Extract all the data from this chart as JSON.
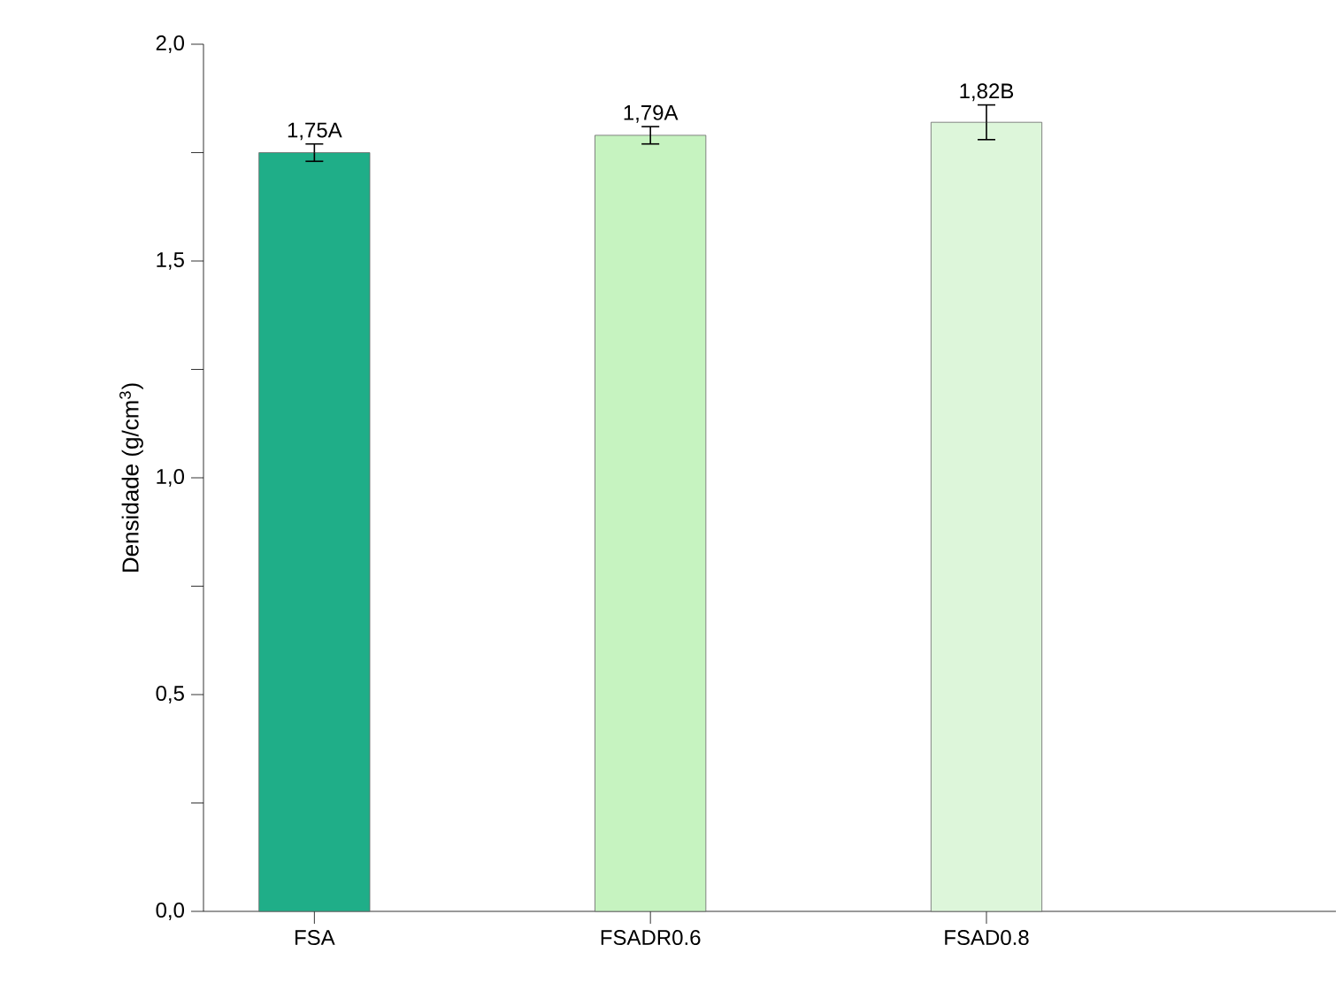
{
  "chart_data": {
    "type": "bar",
    "ylabel": "Densidade (g/cm$^{3}$)",
    "categories": [
      "FSA",
      "FSADR0.6",
      "FSAD0.8"
    ],
    "values": [
      1.75,
      1.79,
      1.82
    ],
    "errors": [
      0.02,
      0.02,
      0.04
    ],
    "value_labels": [
      "1,75A",
      "1,79A",
      "1,82B"
    ],
    "colors": [
      "#1fae88",
      "#c6f3c0",
      "#ddf6da"
    ],
    "ylim": [
      0,
      2
    ],
    "yticks": [
      {
        "value": 0,
        "label": "0,0"
      },
      {
        "value": 0.25,
        "label": null
      },
      {
        "value": 0.5,
        "label": "0,5"
      },
      {
        "value": 0.75,
        "label": null
      },
      {
        "value": 1,
        "label": "1,0"
      },
      {
        "value": 1.25,
        "label": null
      },
      {
        "value": 1.5,
        "label": "1,5"
      },
      {
        "value": 1.75,
        "label": null
      },
      {
        "value": 2,
        "label": "2,0"
      }
    ],
    "grid": false
  }
}
